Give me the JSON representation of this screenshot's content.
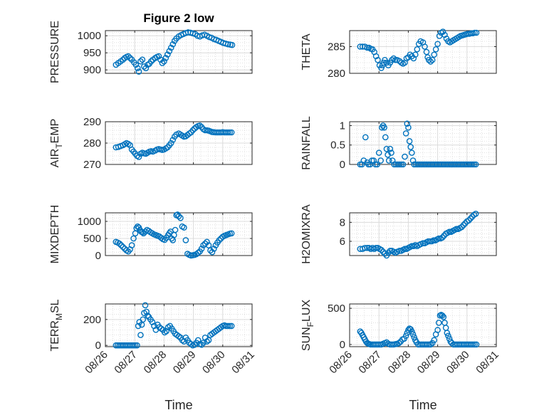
{
  "figure": {
    "title": "Figure 2 low",
    "xlabel": "Time",
    "xticks": [
      "08/26",
      "08/27",
      "08/28",
      "08/29",
      "08/30",
      "08/31"
    ]
  },
  "chart_data": [
    {
      "type": "scatter",
      "ylabel": "PRESSURE",
      "xlim": [
        "08/26 00:00",
        "08/31 00:00"
      ],
      "ylim": [
        890,
        1015
      ],
      "yticks": [
        900,
        950,
        1000
      ],
      "grid": true,
      "minor_grid": true,
      "marker_color": "#0072BD",
      "x_days": [
        0.36,
        0.44,
        0.52,
        0.6,
        0.66,
        0.72,
        0.78,
        0.84,
        0.9,
        0.98,
        1.04,
        1.1,
        1.14,
        1.2,
        1.26,
        1.32,
        1.38,
        1.44,
        1.5,
        1.56,
        1.62,
        1.7,
        1.76,
        1.82,
        1.88,
        1.94,
        2.0,
        2.06,
        2.12,
        2.18,
        2.24,
        2.3,
        2.36,
        2.42,
        2.5,
        2.58,
        2.66,
        2.74,
        2.82,
        2.9,
        2.98,
        3.06,
        3.14,
        3.22,
        3.3,
        3.38,
        3.46,
        3.54,
        3.62,
        3.7,
        3.78,
        3.86,
        3.94,
        4.02,
        4.1,
        4.18,
        4.26,
        4.32
      ],
      "values": [
        915,
        920,
        925,
        930,
        935,
        938,
        940,
        935,
        930,
        922,
        915,
        905,
        895,
        925,
        930,
        910,
        905,
        915,
        918,
        925,
        930,
        935,
        938,
        940,
        930,
        920,
        925,
        935,
        945,
        955,
        965,
        975,
        985,
        992,
        998,
        1002,
        1005,
        1008,
        1010,
        1009,
        1007,
        1005,
        1000,
        998,
        1001,
        1003,
        1000,
        996,
        994,
        990,
        988,
        985,
        982,
        979,
        977,
        975,
        974,
        973
      ]
    },
    {
      "type": "scatter",
      "ylabel": "THETA",
      "xlim": [
        "08/26 00:00",
        "08/31 00:00"
      ],
      "ylim": [
        280,
        288
      ],
      "yticks": [
        280,
        285
      ],
      "grid": true,
      "minor_grid": true,
      "marker_color": "#0072BD",
      "x_days": [
        0.36,
        0.44,
        0.52,
        0.6,
        0.66,
        0.72,
        0.78,
        0.84,
        0.9,
        0.96,
        1.02,
        1.08,
        1.12,
        1.16,
        1.2,
        1.26,
        1.32,
        1.38,
        1.44,
        1.5,
        1.56,
        1.62,
        1.7,
        1.76,
        1.82,
        1.88,
        1.94,
        2.0,
        2.06,
        2.12,
        2.18,
        2.24,
        2.3,
        2.36,
        2.42,
        2.5,
        2.56,
        2.62,
        2.66,
        2.7,
        2.76,
        2.82,
        2.88,
        2.94,
        3.0,
        3.06,
        3.12,
        3.18,
        3.24,
        3.3,
        3.36,
        3.42,
        3.48,
        3.54,
        3.6,
        3.66,
        3.72,
        3.78,
        3.84,
        3.9,
        3.96,
        4.02,
        4.08,
        4.14,
        4.2,
        4.26,
        4.32
      ],
      "values": [
        285,
        285,
        285,
        284.8,
        284.8,
        284.6,
        284.5,
        284,
        283.2,
        282.5,
        281.5,
        281.0,
        281.5,
        282,
        282.5,
        282.0,
        281.5,
        282,
        282.5,
        282.8,
        282.5,
        282.5,
        282.3,
        282,
        281.8,
        282,
        282.8,
        283,
        283.5,
        283.2,
        282.8,
        283.5,
        284.5,
        285.5,
        286,
        285.8,
        285,
        284,
        283,
        282.5,
        282.2,
        282.5,
        283.5,
        284.5,
        285.5,
        287,
        287.6,
        287.8,
        287.2,
        286.5,
        286,
        285.8,
        286,
        286.2,
        286.4,
        286.6,
        286.8,
        287,
        287.1,
        287.2,
        287.3,
        287.4,
        287.4,
        287.5,
        287.5,
        287.6,
        287.6
      ]
    },
    {
      "type": "scatter",
      "ylabel": "AIR_TEMP",
      "xlim": [
        "08/26 00:00",
        "08/31 00:00"
      ],
      "ylim": [
        270,
        290
      ],
      "yticks": [
        270,
        280,
        290
      ],
      "grid": true,
      "minor_grid": true,
      "marker_color": "#0072BD",
      "x_days": [
        0.36,
        0.44,
        0.52,
        0.6,
        0.66,
        0.72,
        0.78,
        0.84,
        0.9,
        0.96,
        1.02,
        1.08,
        1.14,
        1.2,
        1.26,
        1.32,
        1.38,
        1.44,
        1.5,
        1.56,
        1.62,
        1.7,
        1.76,
        1.82,
        1.88,
        1.94,
        2.0,
        2.06,
        2.12,
        2.18,
        2.24,
        2.3,
        2.36,
        2.42,
        2.5,
        2.56,
        2.62,
        2.68,
        2.74,
        2.8,
        2.86,
        2.92,
        2.98,
        3.04,
        3.1,
        3.16,
        3.22,
        3.28,
        3.34,
        3.4,
        3.46,
        3.52,
        3.58,
        3.64,
        3.7,
        3.76,
        3.82,
        3.88,
        3.94,
        4.0,
        4.06,
        4.12,
        4.18,
        4.24,
        4.3
      ],
      "values": [
        278,
        278.2,
        278.6,
        279,
        279.5,
        280,
        279.6,
        279,
        277,
        276,
        275,
        274,
        273.5,
        275,
        275.5,
        275.2,
        275,
        275.5,
        276,
        276.2,
        276,
        276.5,
        277,
        277.2,
        277,
        276.8,
        277,
        277.5,
        278,
        279,
        280,
        281.5,
        283,
        284,
        284.5,
        284,
        283.5,
        283,
        283.2,
        283.8,
        284.5,
        285,
        286,
        286.8,
        287.5,
        288,
        288.2,
        287.5,
        286.5,
        286,
        286,
        285.8,
        285.5,
        285.2,
        285.1,
        285,
        285,
        285,
        285,
        285.1,
        285,
        285,
        285,
        285,
        285
      ]
    },
    {
      "type": "scatter",
      "ylabel": "RAINFALL",
      "xlim": [
        "08/26 00:00",
        "08/31 00:00"
      ],
      "ylim": [
        0,
        1.1
      ],
      "yticks": [
        0,
        0.5,
        1
      ],
      "grid": true,
      "minor_grid": true,
      "marker_color": "#0072BD",
      "x_days": [
        0.36,
        0.42,
        0.48,
        0.54,
        0.6,
        0.64,
        0.7,
        0.76,
        0.82,
        0.88,
        0.94,
        1.0,
        1.06,
        1.1,
        1.14,
        1.18,
        1.22,
        1.26,
        1.3,
        1.34,
        1.38,
        1.42,
        1.46,
        1.52,
        1.58,
        1.64,
        1.7,
        1.76,
        1.82,
        1.88,
        1.92,
        1.96,
        2.0,
        2.04,
        2.08,
        2.12,
        2.16,
        2.2,
        2.26,
        2.32,
        2.38,
        2.44,
        2.5,
        2.56,
        2.62,
        2.68,
        2.74,
        2.8,
        2.86,
        2.92,
        2.98,
        3.04,
        3.1,
        3.16,
        3.22,
        3.28,
        3.34,
        3.4,
        3.46,
        3.52,
        3.58,
        3.64,
        3.7,
        3.76,
        3.82,
        3.88,
        3.94,
        4.0,
        4.06,
        4.12,
        4.18,
        4.24,
        4.3
      ],
      "values": [
        0,
        0,
        0.1,
        0.7,
        0.05,
        0,
        0,
        0.1,
        0.1,
        0,
        0,
        0.3,
        0.1,
        0.95,
        1.0,
        0.95,
        0.7,
        0.4,
        0.25,
        0.1,
        0.4,
        0.3,
        0.1,
        0.0,
        0.0,
        0,
        0,
        0,
        0,
        0.2,
        0.8,
        1.05,
        0.95,
        0.6,
        0.45,
        0.3,
        0.1,
        0.0,
        0,
        0,
        0,
        0,
        0,
        0,
        0,
        0,
        0,
        0,
        0,
        0,
        0,
        0,
        0,
        0,
        0,
        0,
        0,
        0,
        0,
        0,
        0,
        0,
        0,
        0,
        0,
        0,
        0,
        0,
        0,
        0,
        0,
        0,
        0
      ]
    },
    {
      "type": "scatter",
      "ylabel": "MIXDEPTH",
      "xlim": [
        "08/26 00:00",
        "08/31 00:00"
      ],
      "ylim": [
        0,
        1250
      ],
      "yticks": [
        0,
        500,
        1000
      ],
      "grid": true,
      "minor_grid": true,
      "marker_color": "#0072BD",
      "x_days": [
        0.36,
        0.42,
        0.48,
        0.54,
        0.6,
        0.66,
        0.72,
        0.78,
        0.84,
        0.9,
        0.96,
        1.02,
        1.06,
        1.1,
        1.14,
        1.18,
        1.22,
        1.26,
        1.3,
        1.36,
        1.42,
        1.48,
        1.54,
        1.6,
        1.66,
        1.72,
        1.78,
        1.84,
        1.9,
        1.96,
        2.02,
        2.08,
        2.14,
        2.18,
        2.22,
        2.26,
        2.3,
        2.34,
        2.38,
        2.42,
        2.46,
        2.5,
        2.56,
        2.62,
        2.68,
        2.74,
        2.8,
        2.86,
        2.92,
        2.98,
        3.04,
        3.1,
        3.16,
        3.22,
        3.28,
        3.34,
        3.4,
        3.46,
        3.52,
        3.58,
        3.64,
        3.7,
        3.76,
        3.82,
        3.88,
        3.94,
        4.0,
        4.06,
        4.12,
        4.18,
        4.24,
        4.3
      ],
      "values": [
        400,
        380,
        350,
        300,
        250,
        200,
        150,
        120,
        180,
        300,
        500,
        650,
        800,
        850,
        820,
        750,
        700,
        680,
        650,
        700,
        750,
        720,
        680,
        650,
        620,
        600,
        580,
        560,
        520,
        480,
        460,
        520,
        600,
        650,
        700,
        500,
        450,
        600,
        750,
        1180,
        1200,
        1150,
        1100,
        850,
        820,
        450,
        50,
        20,
        0,
        10,
        20,
        40,
        80,
        120,
        200,
        300,
        350,
        400,
        300,
        150,
        100,
        200,
        300,
        380,
        450,
        500,
        550,
        580,
        600,
        620,
        640,
        650
      ]
    },
    {
      "type": "scatter",
      "ylabel": "H2OMIXRA",
      "xlim": [
        "08/26 00:00",
        "08/31 00:00"
      ],
      "ylim": [
        4.5,
        9
      ],
      "yticks": [
        6,
        8
      ],
      "grid": true,
      "minor_grid": true,
      "marker_color": "#0072BD",
      "x_days": [
        0.36,
        0.44,
        0.52,
        0.6,
        0.66,
        0.72,
        0.78,
        0.84,
        0.9,
        0.96,
        1.02,
        1.08,
        1.14,
        1.2,
        1.26,
        1.32,
        1.38,
        1.44,
        1.5,
        1.56,
        1.62,
        1.7,
        1.76,
        1.82,
        1.88,
        1.94,
        2.0,
        2.06,
        2.12,
        2.18,
        2.24,
        2.3,
        2.36,
        2.42,
        2.5,
        2.56,
        2.62,
        2.68,
        2.74,
        2.8,
        2.86,
        2.92,
        2.98,
        3.04,
        3.1,
        3.16,
        3.22,
        3.28,
        3.34,
        3.4,
        3.46,
        3.52,
        3.58,
        3.64,
        3.7,
        3.76,
        3.82,
        3.88,
        3.94,
        4.0,
        4.06,
        4.12,
        4.18,
        4.24,
        4.3
      ],
      "values": [
        5.2,
        5.2,
        5.3,
        5.3,
        5.3,
        5.2,
        5.3,
        5.2,
        5.3,
        5.3,
        5.2,
        5.1,
        4.9,
        4.7,
        4.5,
        4.8,
        5.0,
        5.0,
        4.9,
        4.8,
        4.9,
        5.0,
        5.0,
        5.1,
        5.2,
        5.2,
        5.3,
        5.4,
        5.5,
        5.5,
        5.6,
        5.5,
        5.6,
        5.7,
        5.8,
        5.8,
        5.9,
        6.0,
        6.0,
        6.0,
        6.1,
        6.1,
        6.2,
        6.3,
        6.3,
        6.4,
        6.6,
        6.8,
        6.9,
        7.0,
        7.0,
        7.1,
        7.2,
        7.3,
        7.3,
        7.4,
        7.5,
        7.7,
        7.9,
        8.1,
        8.2,
        8.4,
        8.6,
        8.8,
        8.9
      ]
    },
    {
      "type": "scatter",
      "ylabel": "TERR_MSL",
      "xlim": [
        "08/26 00:00",
        "08/31 00:00"
      ],
      "ylim": [
        -10,
        320
      ],
      "yticks": [
        0,
        200
      ],
      "grid": true,
      "minor_grid": true,
      "marker_color": "#0072BD",
      "x_days": [
        0.36,
        0.42,
        0.48,
        0.54,
        0.6,
        0.66,
        0.72,
        0.78,
        0.84,
        0.9,
        0.96,
        1.02,
        1.08,
        1.12,
        1.16,
        1.2,
        1.24,
        1.28,
        1.32,
        1.36,
        1.4,
        1.44,
        1.48,
        1.54,
        1.6,
        1.66,
        1.72,
        1.78,
        1.84,
        1.9,
        1.96,
        2.02,
        2.08,
        2.14,
        2.2,
        2.26,
        2.32,
        2.38,
        2.44,
        2.5,
        2.56,
        2.62,
        2.68,
        2.74,
        2.8,
        2.86,
        2.92,
        2.98,
        3.04,
        3.1,
        3.16,
        3.22,
        3.28,
        3.34,
        3.4,
        3.46,
        3.52,
        3.58,
        3.64,
        3.7,
        3.76,
        3.82,
        3.88,
        3.94,
        4.0,
        4.06,
        4.12,
        4.18,
        4.24,
        4.3
      ],
      "values": [
        0,
        0,
        0,
        0,
        0,
        0,
        0,
        0,
        0,
        0,
        0,
        0,
        0,
        150,
        180,
        80,
        160,
        200,
        250,
        310,
        260,
        230,
        220,
        200,
        180,
        150,
        120,
        160,
        140,
        130,
        120,
        100,
        110,
        140,
        150,
        130,
        110,
        90,
        80,
        70,
        60,
        40,
        30,
        60,
        40,
        20,
        10,
        0,
        5,
        20,
        40,
        10,
        5,
        20,
        60,
        30,
        40,
        80,
        90,
        100,
        110,
        120,
        130,
        140,
        150,
        155,
        150,
        150,
        150,
        150
      ]
    },
    {
      "type": "scatter",
      "ylabel": "SUN_FLUX",
      "xlim": [
        "08/26 00:00",
        "08/31 00:00"
      ],
      "ylim": [
        -30,
        560
      ],
      "yticks": [
        0,
        500
      ],
      "grid": true,
      "minor_grid": true,
      "marker_color": "#0072BD",
      "x_days": [
        0.36,
        0.4,
        0.44,
        0.48,
        0.52,
        0.56,
        0.6,
        0.64,
        0.68,
        0.72,
        0.78,
        0.84,
        0.9,
        0.96,
        1.02,
        1.08,
        1.14,
        1.2,
        1.26,
        1.32,
        1.38,
        1.44,
        1.5,
        1.56,
        1.62,
        1.68,
        1.74,
        1.8,
        1.86,
        1.92,
        1.96,
        2.0,
        2.04,
        2.08,
        2.12,
        2.16,
        2.2,
        2.24,
        2.28,
        2.34,
        2.4,
        2.46,
        2.52,
        2.58,
        2.64,
        2.7,
        2.76,
        2.82,
        2.88,
        2.94,
        3.0,
        3.04,
        3.08,
        3.12,
        3.16,
        3.2,
        3.24,
        3.28,
        3.32,
        3.36,
        3.4,
        3.44,
        3.48,
        3.54,
        3.6,
        3.66,
        3.72,
        3.78,
        3.84,
        3.9,
        3.96,
        4.02,
        4.08,
        4.14,
        4.2,
        4.26,
        4.32
      ],
      "values": [
        180,
        160,
        130,
        100,
        70,
        40,
        20,
        10,
        5,
        0,
        0,
        0,
        0,
        0,
        0,
        0,
        10,
        20,
        30,
        10,
        0,
        0,
        0,
        5,
        10,
        20,
        40,
        70,
        80,
        120,
        160,
        200,
        220,
        210,
        180,
        140,
        100,
        60,
        30,
        0,
        0,
        0,
        0,
        0,
        0,
        0,
        0,
        20,
        60,
        140,
        200,
        300,
        400,
        410,
        400,
        380,
        300,
        230,
        160,
        120,
        80,
        40,
        20,
        0,
        0,
        0,
        0,
        0,
        0,
        0,
        0,
        0,
        0,
        0,
        0,
        0,
        0
      ]
    }
  ]
}
